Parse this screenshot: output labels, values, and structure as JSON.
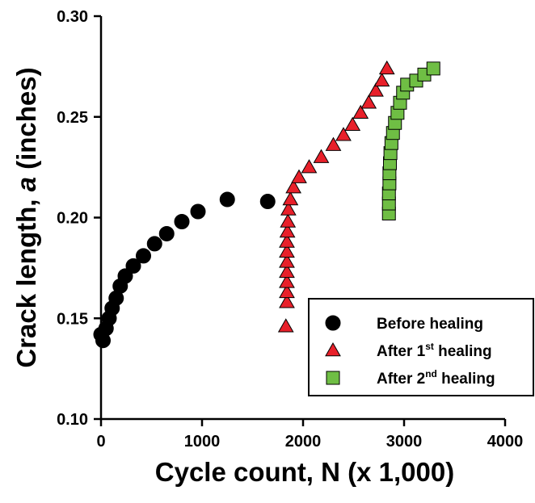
{
  "chart_data": {
    "type": "scatter",
    "title": "",
    "xlabel": "Cycle count, N (x 1,000)",
    "ylabel_parts": [
      "Crack length, ",
      "a",
      " (inches)"
    ],
    "xlim": [
      0,
      4000
    ],
    "ylim": [
      0.1,
      0.3
    ],
    "x_ticks": [
      0,
      1000,
      2000,
      3000,
      4000
    ],
    "x_tick_labels": [
      "0",
      "1000",
      "2000",
      "3000",
      "4000"
    ],
    "y_ticks": [
      0.1,
      0.15,
      0.2,
      0.25,
      0.3
    ],
    "y_tick_labels": [
      "0.10",
      "0.15",
      "0.20",
      "0.25",
      "0.30"
    ],
    "grid": false,
    "legend_position": "bottom-right",
    "series": [
      {
        "name": "Before healing",
        "marker": "circle",
        "color": "#000000",
        "points": [
          [
            0,
            0.142
          ],
          [
            20,
            0.139
          ],
          [
            50,
            0.145
          ],
          [
            80,
            0.15
          ],
          [
            110,
            0.155
          ],
          [
            150,
            0.16
          ],
          [
            190,
            0.166
          ],
          [
            240,
            0.171
          ],
          [
            320,
            0.176
          ],
          [
            420,
            0.181
          ],
          [
            530,
            0.187
          ],
          [
            650,
            0.192
          ],
          [
            800,
            0.198
          ],
          [
            960,
            0.203
          ],
          [
            1250,
            0.209
          ],
          [
            1650,
            0.208
          ]
        ]
      },
      {
        "name": "After 1st healing",
        "name_parts": [
          "After 1",
          "st",
          " healing"
        ],
        "marker": "triangle",
        "color": "#e8202a",
        "points": [
          [
            1830,
            0.146
          ],
          [
            1840,
            0.158
          ],
          [
            1840,
            0.163
          ],
          [
            1840,
            0.168
          ],
          [
            1840,
            0.173
          ],
          [
            1840,
            0.178
          ],
          [
            1840,
            0.183
          ],
          [
            1840,
            0.188
          ],
          [
            1845,
            0.193
          ],
          [
            1850,
            0.198
          ],
          [
            1855,
            0.204
          ],
          [
            1875,
            0.209
          ],
          [
            1905,
            0.215
          ],
          [
            1960,
            0.22
          ],
          [
            2060,
            0.225
          ],
          [
            2180,
            0.23
          ],
          [
            2300,
            0.236
          ],
          [
            2400,
            0.241
          ],
          [
            2490,
            0.246
          ],
          [
            2570,
            0.252
          ],
          [
            2650,
            0.257
          ],
          [
            2720,
            0.263
          ],
          [
            2780,
            0.268
          ],
          [
            2830,
            0.274
          ]
        ]
      },
      {
        "name": "After 2nd healing",
        "name_parts": [
          "After 2",
          "nd",
          " healing"
        ],
        "marker": "square",
        "color": "#6fbe44",
        "points": [
          [
            2850,
            0.202
          ],
          [
            2850,
            0.207
          ],
          [
            2850,
            0.212
          ],
          [
            2855,
            0.217
          ],
          [
            2855,
            0.222
          ],
          [
            2860,
            0.227
          ],
          [
            2865,
            0.232
          ],
          [
            2875,
            0.237
          ],
          [
            2890,
            0.242
          ],
          [
            2910,
            0.247
          ],
          [
            2935,
            0.252
          ],
          [
            2960,
            0.257
          ],
          [
            2990,
            0.262
          ],
          [
            3030,
            0.266
          ],
          [
            3120,
            0.268
          ],
          [
            3200,
            0.271
          ],
          [
            3290,
            0.274
          ]
        ]
      }
    ]
  }
}
